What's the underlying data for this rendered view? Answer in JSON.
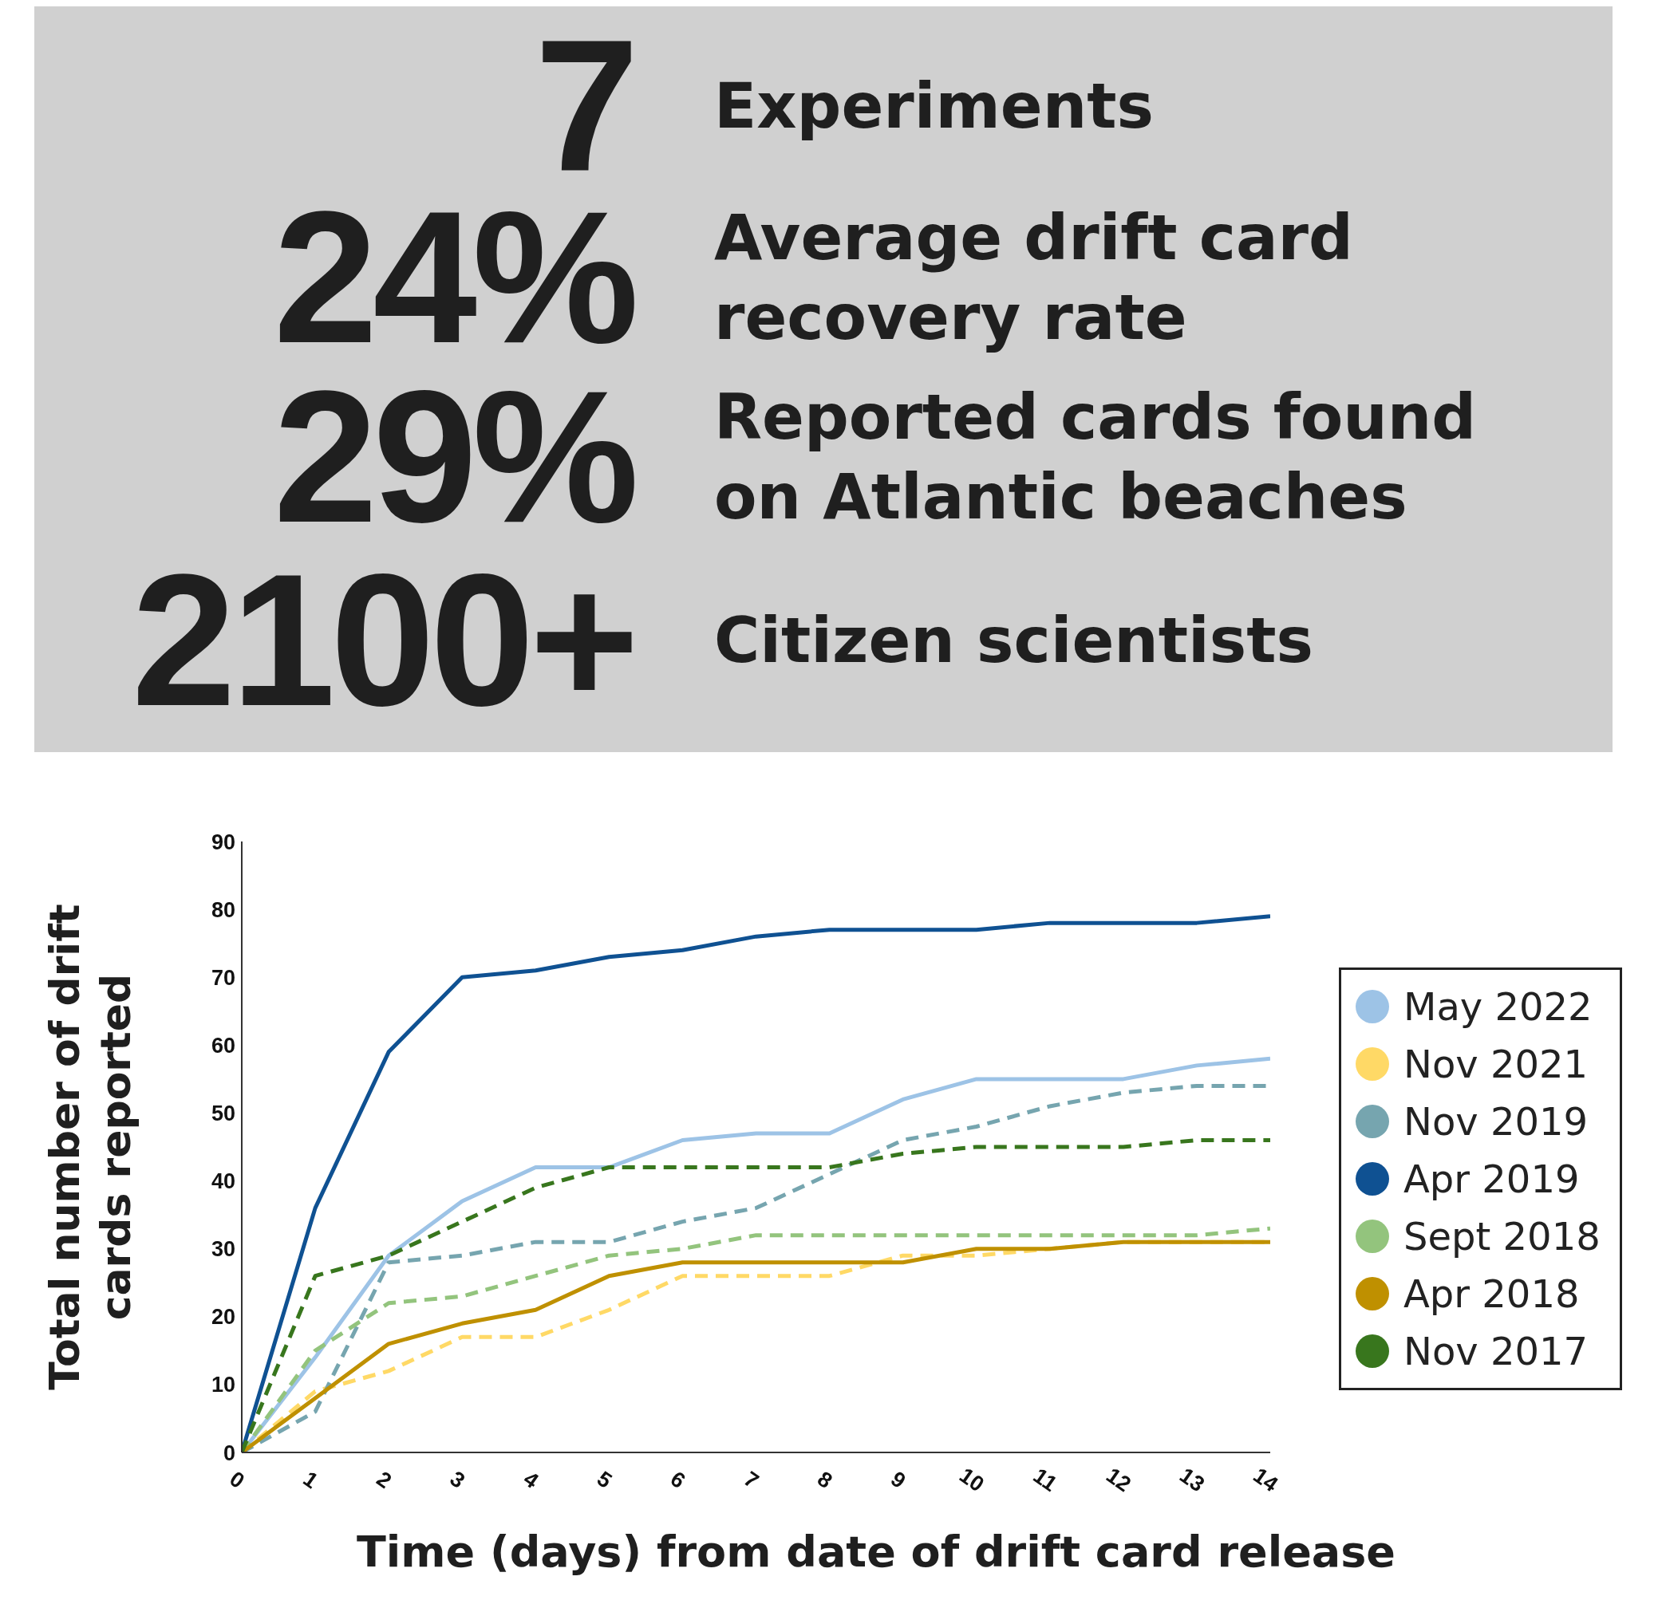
{
  "chart_data": [
    {
      "type": "other",
      "annotations": [
        "7",
        "Experiments",
        "24%",
        "Average drift card recovery rate",
        "29%",
        "Reported cards found on Atlantic beaches",
        "2100+",
        "Citizen scientists"
      ]
    },
    {
      "type": "line",
      "xlabel": "Time (days) from date of drift card release",
      "ylabel": "Total number of drift cards reported",
      "x": [
        0,
        1,
        2,
        3,
        4,
        5,
        6,
        7,
        8,
        9,
        10,
        11,
        12,
        13,
        14
      ],
      "xlim": [
        0,
        14
      ],
      "xticks": [
        0,
        1,
        2,
        3,
        4,
        5,
        6,
        7,
        8,
        9,
        10,
        11,
        12,
        13,
        14
      ],
      "ylim": [
        0,
        90
      ],
      "yticks": [
        0,
        10,
        20,
        30,
        40,
        50,
        60,
        70,
        80,
        90
      ],
      "grid": false,
      "legend": "right",
      "marker": "none",
      "series": [
        {
          "name": "May 2022",
          "color": "#9dc3e6",
          "line_style": "solid",
          "values": [
            0,
            14,
            29,
            37,
            42,
            42,
            46,
            47,
            47,
            52,
            55,
            55,
            55,
            57,
            58
          ]
        },
        {
          "name": "Nov 2021",
          "color": "#ffd966",
          "line_style": "dashed",
          "values": [
            0,
            9,
            12,
            17,
            17,
            21,
            26,
            26,
            26,
            29,
            29,
            30,
            31,
            31,
            31
          ]
        },
        {
          "name": "Nov 2019",
          "color": "#76a5af",
          "line_style": "dashed",
          "values": [
            0,
            6,
            28,
            29,
            31,
            31,
            34,
            36,
            41,
            46,
            48,
            51,
            53,
            54,
            54
          ]
        },
        {
          "name": "Apr 2019",
          "color": "#0f5192",
          "line_style": "solid",
          "values": [
            0,
            36,
            59,
            70,
            71,
            73,
            74,
            76,
            77,
            77,
            77,
            78,
            78,
            78,
            79
          ]
        },
        {
          "name": "Sept 2018",
          "color": "#93c47d",
          "line_style": "dashed",
          "values": [
            0,
            15,
            22,
            23,
            26,
            29,
            30,
            32,
            32,
            32,
            32,
            32,
            32,
            32,
            33
          ]
        },
        {
          "name": "Apr 2018",
          "color": "#bf9000",
          "line_style": "solid",
          "values": [
            0,
            8,
            16,
            19,
            21,
            26,
            28,
            28,
            28,
            28,
            30,
            30,
            31,
            31,
            31
          ]
        },
        {
          "name": "Nov 2017",
          "color": "#38761d",
          "line_style": "dashed",
          "values": [
            0,
            26,
            29,
            34,
            39,
            42,
            42,
            42,
            42,
            44,
            45,
            45,
            45,
            46,
            46
          ]
        }
      ]
    }
  ]
}
